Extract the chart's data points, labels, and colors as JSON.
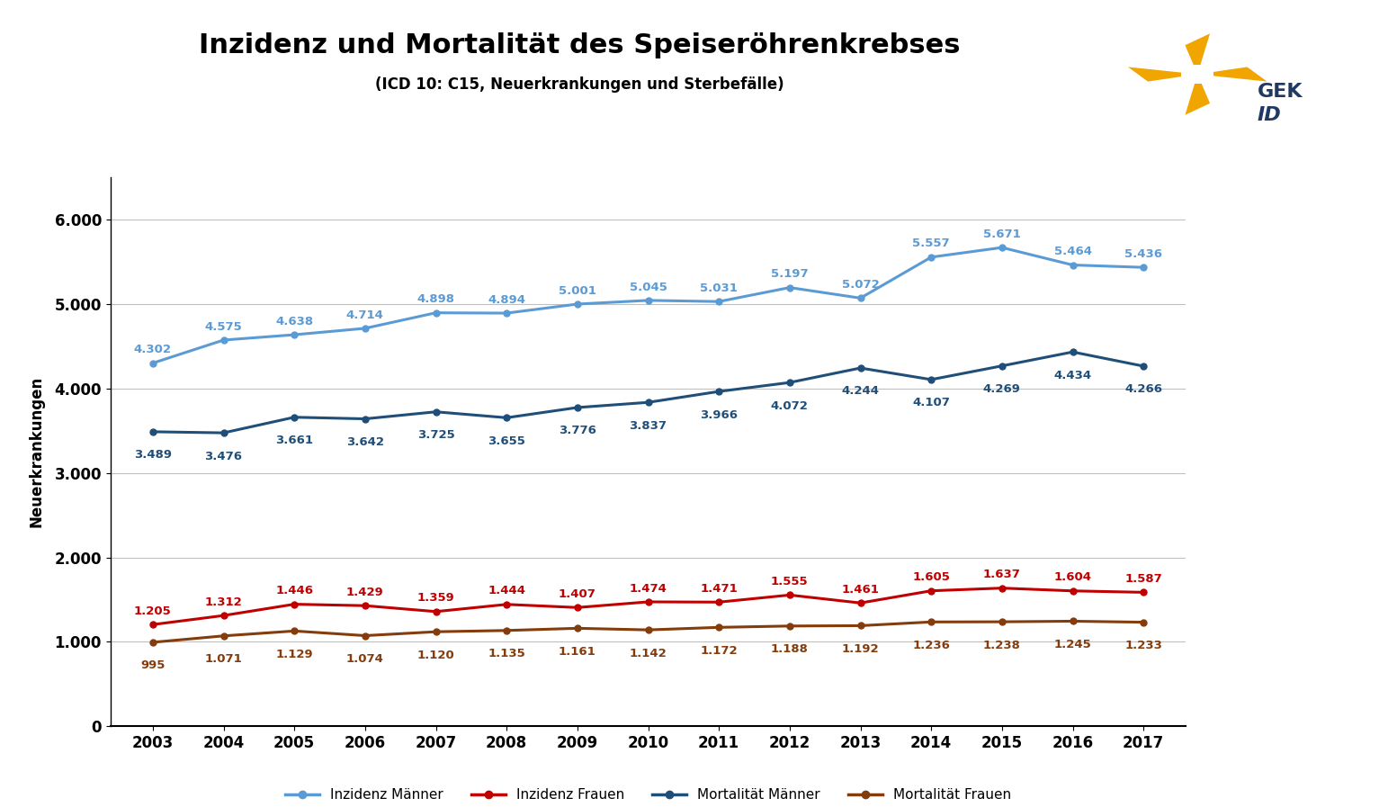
{
  "title": "Inzidenz und Mortalität des Speiseröhrenkrebses",
  "subtitle": "(ICD 10: C15, Neuerkrankungen und Sterbefälle)",
  "ylabel": "Neuerkrankungen",
  "years": [
    2003,
    2004,
    2005,
    2006,
    2007,
    2008,
    2009,
    2010,
    2011,
    2012,
    2013,
    2014,
    2015,
    2016,
    2017
  ],
  "inzidenz_maenner": [
    4302,
    4575,
    4638,
    4714,
    4898,
    4894,
    5001,
    5045,
    5031,
    5197,
    5072,
    5557,
    5671,
    5464,
    5436
  ],
  "inzidenz_frauen": [
    1205,
    1312,
    1446,
    1429,
    1359,
    1444,
    1407,
    1474,
    1471,
    1555,
    1461,
    1605,
    1637,
    1604,
    1587
  ],
  "mortalitaet_maenner": [
    3489,
    3476,
    3661,
    3642,
    3725,
    3655,
    3776,
    3837,
    3966,
    4072,
    4244,
    4107,
    4269,
    4434,
    4266
  ],
  "mortalitaet_frauen": [
    995,
    1071,
    1129,
    1074,
    1120,
    1135,
    1161,
    1142,
    1172,
    1188,
    1192,
    1236,
    1238,
    1245,
    1233
  ],
  "color_inzidenz_maenner": "#5B9BD5",
  "color_inzidenz_frauen": "#C00000",
  "color_mortalitaet_maenner": "#1F4E79",
  "color_mortalitaet_frauen": "#843C0C",
  "ylim": [
    0,
    6500
  ],
  "yticks": [
    0,
    1000,
    2000,
    3000,
    4000,
    5000,
    6000
  ],
  "ytick_labels": [
    "0",
    "1.000",
    "2.000",
    "3.000",
    "4.000",
    "5.000",
    "6.000"
  ],
  "legend_labels": [
    "Inzidenz Männer",
    "Inzidenz Frauen",
    "Mortalität Männer",
    "Mortalität Frauen"
  ],
  "background_color": "#FFFFFF",
  "grid_color": "#C0C0C0",
  "label_fontsize": 9.5,
  "title_fontsize": 22,
  "subtitle_fontsize": 12,
  "ylabel_fontsize": 12,
  "tick_fontsize": 12,
  "legend_fontsize": 11,
  "logo_gold": "#F0A500",
  "logo_text_color": "#1F3864",
  "logo_text_gek": "GEK",
  "logo_text_id_normal": "I",
  "logo_text_id_italic": "D"
}
